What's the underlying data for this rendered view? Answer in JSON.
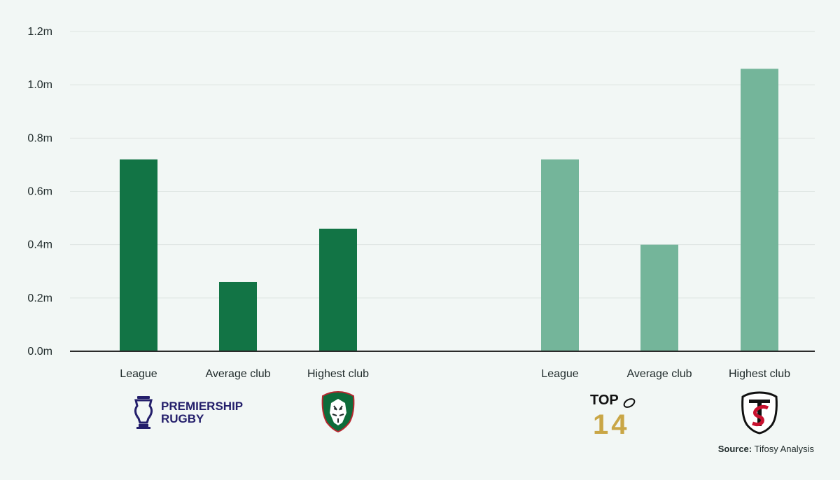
{
  "chart_data": {
    "type": "bar",
    "ylim": [
      0,
      1.2
    ],
    "y_ticks": [
      {
        "value": 0.0,
        "label": "0.0m"
      },
      {
        "value": 0.2,
        "label": "0.2m"
      },
      {
        "value": 0.4,
        "label": "0.4m"
      },
      {
        "value": 0.6,
        "label": "0.6m"
      },
      {
        "value": 0.8,
        "label": "0.8m"
      },
      {
        "value": 1.0,
        "label": "1.0m"
      },
      {
        "value": 1.2,
        "label": "1.2m"
      }
    ],
    "grid": true,
    "groups": [
      {
        "logo": "premiership-rugby-logo",
        "color": "#127445",
        "categories": [
          "League",
          "Average club",
          "Highest club"
        ],
        "values": [
          0.72,
          0.26,
          0.46
        ]
      },
      {
        "logo": "top-14-logo",
        "color": "#74b59a",
        "categories": [
          "League",
          "Average club",
          "Highest club"
        ],
        "values": [
          0.72,
          0.4,
          1.06
        ]
      }
    ],
    "club_logos": [
      "leicester-tigers-crest",
      "stade-toulousain-crest"
    ]
  },
  "logos": {
    "premiership_line1": "PREMIERSHIP",
    "premiership_line2": "RUGBY",
    "top14_line1": "TOP",
    "top14_line2": "14"
  },
  "source": {
    "label": "Source:",
    "text": " Tifosy Analysis"
  },
  "colors": {
    "background": "#f2f7f5",
    "grid": "#dde4e1",
    "axis": "#2b2b2b",
    "premiership_navy": "#241f6b",
    "top14_gold": "#c9a646"
  }
}
